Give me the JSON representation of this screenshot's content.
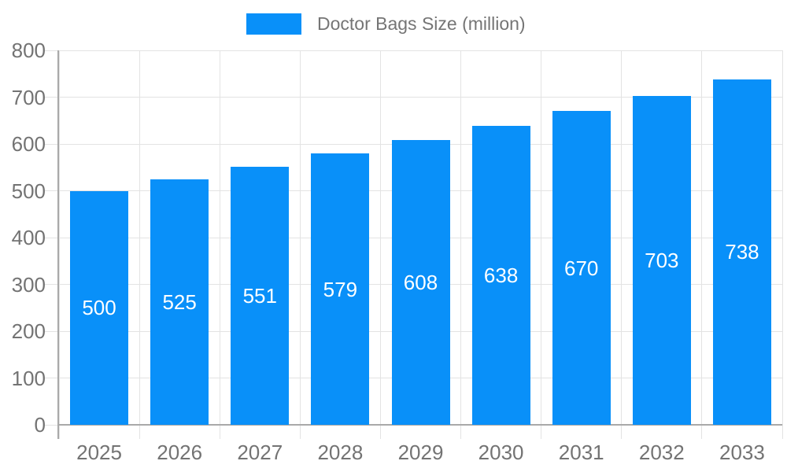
{
  "colors": {
    "bar": "#0990f9",
    "bar_label_text": "#ffffff",
    "axis_line": "#a9a9a9",
    "gridline": "#e3e3e3",
    "tick_text": "#737373",
    "legend_text": "#757575",
    "background": "#ffffff"
  },
  "chart_data": {
    "type": "bar",
    "title": "Doctor Bags Size (million)",
    "categories": [
      "2025",
      "2026",
      "2027",
      "2028",
      "2029",
      "2030",
      "2031",
      "2032",
      "2033"
    ],
    "values": [
      500,
      525,
      551,
      579,
      608,
      638,
      670,
      703,
      738
    ],
    "xlabel": "",
    "ylabel": "",
    "ylim": [
      0,
      800
    ],
    "yticks": [
      0,
      100,
      200,
      300,
      400,
      500,
      600,
      700,
      800
    ],
    "grid": true,
    "bar_labels_visible": true,
    "legend_position": "top-center"
  }
}
